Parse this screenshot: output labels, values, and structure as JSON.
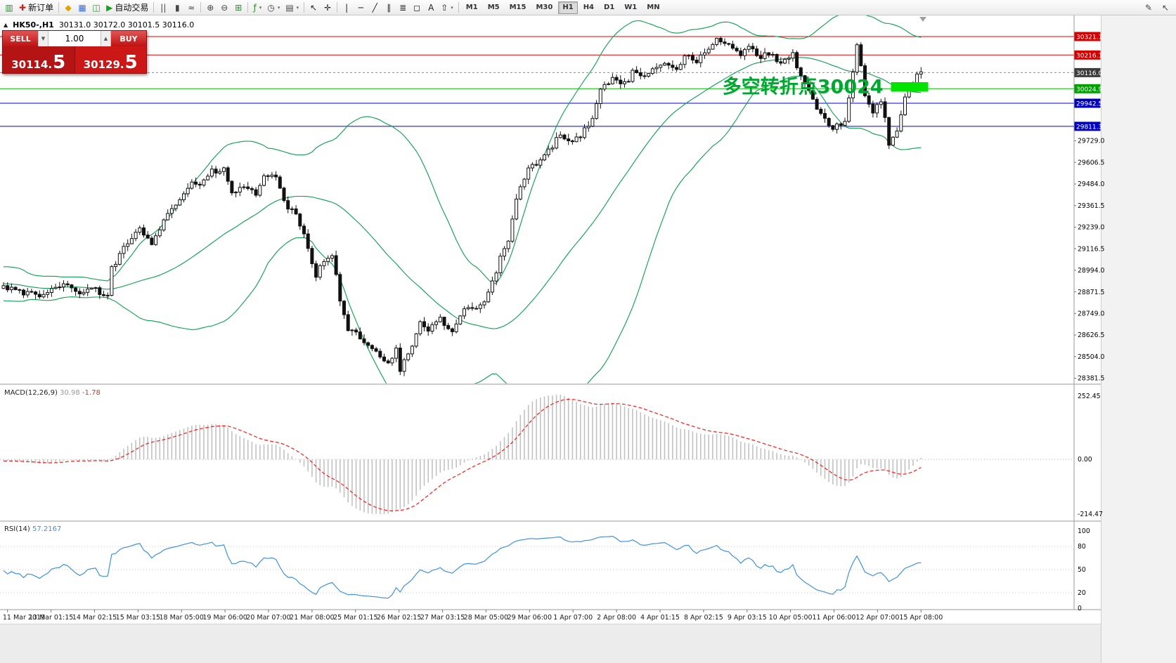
{
  "toolbar": {
    "dropdown_glyph": "▾",
    "groups": [
      {
        "items": [
          {
            "name": "new-chart-icon",
            "glyph": "▥",
            "color": "#2e8b2e"
          },
          {
            "name": "new-order-button",
            "glyph": "✚",
            "color": "#cc2222",
            "label": "新订单"
          }
        ]
      },
      {
        "items": [
          {
            "name": "compass-icon",
            "glyph": "◆",
            "color": "#e0a400"
          },
          {
            "name": "market-watch-icon",
            "glyph": "▦",
            "color": "#3b6fd4"
          },
          {
            "name": "data-window-icon",
            "glyph": "◫",
            "color": "#2e8b2e"
          },
          {
            "name": "auto-trading-button",
            "glyph": "▶",
            "color": "#17a317",
            "label": "自动交易"
          }
        ]
      },
      {
        "items": [
          {
            "name": "bar-chart-icon",
            "glyph": "||",
            "color": "#444444"
          },
          {
            "name": "candlestick-chart-icon",
            "glyph": "▮",
            "color": "#444444"
          },
          {
            "name": "line-chart-icon",
            "glyph": "≈",
            "color": "#444444"
          }
        ]
      },
      {
        "items": [
          {
            "name": "zoom-in-icon",
            "glyph": "⊕",
            "color": "#444444"
          },
          {
            "name": "zoom-out-icon",
            "glyph": "⊖",
            "color": "#444444"
          },
          {
            "name": "tile-windows-icon",
            "glyph": "⊞",
            "color": "#2e8b2e"
          }
        ]
      },
      {
        "items": [
          {
            "name": "indicators-icon",
            "glyph": "ƒ",
            "color": "#2e8b2e",
            "dropdown": true
          },
          {
            "name": "periods-icon",
            "glyph": "◷",
            "color": "#444444",
            "dropdown": true
          },
          {
            "name": "templates-icon",
            "glyph": "▤",
            "color": "#444444",
            "dropdown": true
          }
        ]
      },
      {
        "items": [
          {
            "name": "cursor-icon",
            "glyph": "↖",
            "color": "#222222"
          },
          {
            "name": "crosshair-icon",
            "glyph": "✛",
            "color": "#222222"
          }
        ]
      },
      {
        "items": [
          {
            "name": "vertical-line-icon",
            "glyph": "|",
            "color": "#222222"
          },
          {
            "name": "horizontal-line-icon",
            "glyph": "─",
            "color": "#222222"
          },
          {
            "name": "trendline-icon",
            "glyph": "╱",
            "color": "#222222"
          },
          {
            "name": "channel-icon",
            "glyph": "∥",
            "color": "#222222"
          },
          {
            "name": "fibonacci-icon",
            "glyph": "≣",
            "color": "#222222"
          },
          {
            "name": "shapes-icon",
            "glyph": "◻",
            "color": "#222222"
          },
          {
            "name": "text-icon",
            "glyph": "A",
            "color": "#222222"
          },
          {
            "name": "arrows-icon",
            "glyph": "⇧",
            "color": "#222222",
            "dropdown": true
          }
        ]
      }
    ],
    "timeframes": {
      "items": [
        "M1",
        "M5",
        "M15",
        "M30",
        "H1",
        "H4",
        "D1",
        "W1",
        "MN"
      ],
      "active": "H1"
    },
    "right_icons": [
      {
        "name": "pencil-icon",
        "glyph": "✎"
      },
      {
        "name": "pointer-icon",
        "glyph": "↖"
      }
    ]
  },
  "chart": {
    "symbol_period": "HK50-,H1",
    "ohlc_text": "30131.0 30172.0 30101.5 30116.0",
    "one_click": {
      "toggle_glyph": "▲",
      "sell_label": "SELL",
      "buy_label": "BUY",
      "volume": "1.00",
      "spin_down_glyph": "▼",
      "spin_up_glyph": "▲",
      "sell_price_main": "30114.",
      "sell_price_big": "5",
      "buy_price_main": "30129.",
      "buy_price_big": "5"
    },
    "levels": [
      {
        "label": "30321.1",
        "price": 30321.1,
        "line": "#ee0000",
        "badge": "#d40000"
      },
      {
        "label": "30216.1",
        "price": 30216.1,
        "line": "#ee0000",
        "badge": "#d40000"
      },
      {
        "label": "30024.9",
        "price": 30024.9,
        "line": "#00c000",
        "badge": "#00a000"
      },
      {
        "label": "29942.5",
        "price": 29942.5,
        "line": "#0000e0",
        "badge": "#0000c0"
      },
      {
        "label": "29811.3",
        "price": 29811.3,
        "line": "#0000e0",
        "badge": "#0000c0"
      }
    ],
    "current_price": {
      "label": "30116.0",
      "price": 30116.0,
      "badge": "#3c3c3c"
    },
    "price_ticks": [
      "29729.0",
      "29606.5",
      "29484.0",
      "29361.5",
      "29239.0",
      "29116.5",
      "28994.0",
      "28871.5",
      "28749.0",
      "28626.5",
      "28504.0",
      "28381.5"
    ],
    "time_labels": [
      "11 Mar 2019",
      "13 Mar 01:15",
      "14 Mar 02:15",
      "15 Mar 03:15",
      "18 Mar 05:00",
      "19 Mar 06:00",
      "20 Mar 07:00",
      "21 Mar 08:00",
      "25 Mar 01:15",
      "26 Mar 02:15",
      "27 Mar 03:15",
      "28 Mar 05:00",
      "29 Mar 06:00",
      "1 Apr 07:00",
      "2 Apr 08:00",
      "4 Apr 01:15",
      "8 Apr 02:15",
      "9 Apr 03:15",
      "10 Apr 05:00",
      "11 Apr 06:00",
      "12 Apr 07:00",
      "15 Apr 08:00"
    ],
    "indicators": {
      "macd": {
        "label": "MACD(12,26,9)",
        "value_main": "30.98",
        "value_signal": "-1.78",
        "axis": [
          "252.45",
          "0.00",
          "-214.47"
        ]
      },
      "rsi": {
        "label": "RSI(14)",
        "value": "57.2167",
        "axis": [
          "100",
          "80",
          "50",
          "20",
          "0"
        ]
      }
    }
  },
  "chart_data": {
    "type": "candlestick",
    "symbol": "HK50-",
    "timeframe": "H1",
    "last_ohlc": {
      "open": 30131.0,
      "high": 30172.0,
      "low": 30101.5,
      "close": 30116.0
    },
    "candle_count": 230,
    "warmup_candles": 60,
    "candle_spacing_px": 5.7,
    "y_axis": {
      "price_top": 30440.7,
      "price_bottom": 28351.6
    },
    "overlays": {
      "bollinger": {
        "period": 40,
        "deviation": 2,
        "color": "#0aa050"
      }
    },
    "macd_params": {
      "fast": 12,
      "slow": 26,
      "signal": 9,
      "histogram_color": "#c2c2c2",
      "signal_color": "#ff1a1a"
    },
    "rsi_params": {
      "period": 14,
      "color": "#3f92e0",
      "levels": [
        80,
        50,
        20
      ]
    },
    "horizontal_levels": [
      30321.1,
      30216.1,
      30024.9,
      29942.5,
      29811.3
    ],
    "annotation": {
      "text": "多空转折点30024",
      "color": "#00a830",
      "anchor_index": 221,
      "baseline_price": 30000,
      "box": {
        "x1_index": 221.5,
        "x2_index": 230.8,
        "price_top": 30062,
        "price_bottom": 30008,
        "fill": "#00e400"
      }
    },
    "close_waypoints": [
      [
        -60,
        28980
      ],
      [
        -50,
        29100
      ],
      [
        -42,
        28860
      ],
      [
        -34,
        29030
      ],
      [
        -26,
        28820
      ],
      [
        -18,
        28960
      ],
      [
        -10,
        28870
      ],
      [
        -5,
        28940
      ],
      [
        0,
        28900
      ],
      [
        5,
        28868
      ],
      [
        10,
        28842
      ],
      [
        15,
        28925
      ],
      [
        19,
        28860
      ],
      [
        22,
        28893
      ],
      [
        26,
        28838
      ],
      [
        27,
        29000
      ],
      [
        30,
        29120
      ],
      [
        34,
        29225
      ],
      [
        37,
        29150
      ],
      [
        41,
        29330
      ],
      [
        44,
        29390
      ],
      [
        47,
        29500
      ],
      [
        49,
        29478
      ],
      [
        52,
        29552
      ],
      [
        55,
        29562
      ],
      [
        57,
        29430
      ],
      [
        60,
        29472
      ],
      [
        63,
        29420
      ],
      [
        65,
        29542
      ],
      [
        68,
        29510
      ],
      [
        70,
        29380
      ],
      [
        73,
        29300
      ],
      [
        76,
        29130
      ],
      [
        78,
        28960
      ],
      [
        80,
        29052
      ],
      [
        82,
        29092
      ],
      [
        84,
        28820
      ],
      [
        86,
        28650
      ],
      [
        89,
        28618
      ],
      [
        91,
        28560
      ],
      [
        94,
        28518
      ],
      [
        96,
        28462
      ],
      [
        98,
        28560
      ],
      [
        99,
        28430
      ],
      [
        101,
        28520
      ],
      [
        104,
        28690
      ],
      [
        106,
        28652
      ],
      [
        109,
        28722
      ],
      [
        112,
        28640
      ],
      [
        114,
        28750
      ],
      [
        117,
        28782
      ],
      [
        120,
        28800
      ],
      [
        122,
        28930
      ],
      [
        124,
        29060
      ],
      [
        126,
        29150
      ],
      [
        128,
        29400
      ],
      [
        131,
        29570
      ],
      [
        134,
        29618
      ],
      [
        136,
        29668
      ],
      [
        139,
        29778
      ],
      [
        141,
        29720
      ],
      [
        144,
        29760
      ],
      [
        147,
        29850
      ],
      [
        149,
        30020
      ],
      [
        152,
        30088
      ],
      [
        155,
        30048
      ],
      [
        157,
        30118
      ],
      [
        160,
        30080
      ],
      [
        163,
        30148
      ],
      [
        165,
        30180
      ],
      [
        168,
        30140
      ],
      [
        170,
        30208
      ],
      [
        173,
        30188
      ],
      [
        176,
        30240
      ],
      [
        178,
        30298
      ],
      [
        181,
        30268
      ],
      [
        184,
        30228
      ],
      [
        186,
        30278
      ],
      [
        189,
        30198
      ],
      [
        191,
        30228
      ],
      [
        194,
        30158
      ],
      [
        197,
        30218
      ],
      [
        199,
        30100
      ],
      [
        202,
        29950
      ],
      [
        205,
        29860
      ],
      [
        207,
        29798
      ],
      [
        210,
        29840
      ],
      [
        212,
        30120
      ],
      [
        213,
        30280
      ],
      [
        214,
        30150
      ],
      [
        215,
        29980
      ],
      [
        217,
        29888
      ],
      [
        219,
        29948
      ],
      [
        220,
        29858
      ],
      [
        221,
        29700
      ],
      [
        223,
        29778
      ],
      [
        225,
        29980
      ],
      [
        227,
        30058
      ],
      [
        228,
        30098
      ],
      [
        229,
        30116
      ]
    ]
  }
}
